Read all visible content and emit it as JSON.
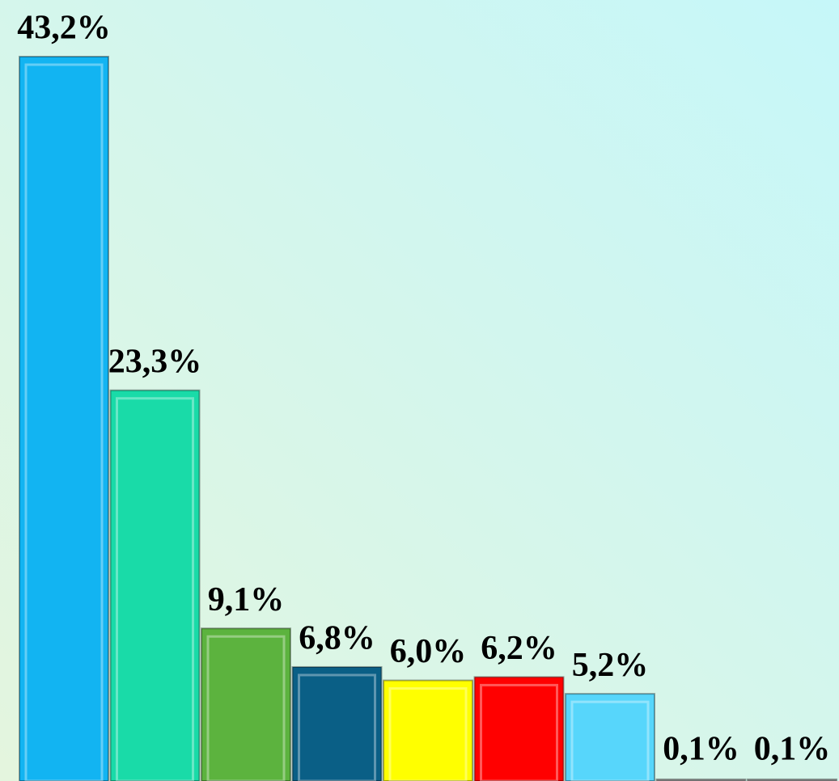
{
  "chart_data": {
    "type": "bar",
    "categories": [
      null,
      null,
      null,
      null,
      null,
      null,
      null,
      null,
      null
    ],
    "values": [
      43.2,
      23.3,
      9.1,
      6.8,
      6.0,
      6.2,
      5.2,
      0.1,
      0.1
    ],
    "value_labels": [
      "43,2%",
      "23,3%",
      "9,1%",
      "6,8%",
      "6,0%",
      "6,2%",
      "5,2%",
      "0,1%",
      "0,1%"
    ],
    "colors": [
      "#12b4f2",
      "#19dba8",
      "#5cb33e",
      "#0a5f86",
      "#ffff00",
      "#ff0000",
      "#57d6fb",
      "#b0b0b0",
      "#b0b0b0"
    ]
  }
}
